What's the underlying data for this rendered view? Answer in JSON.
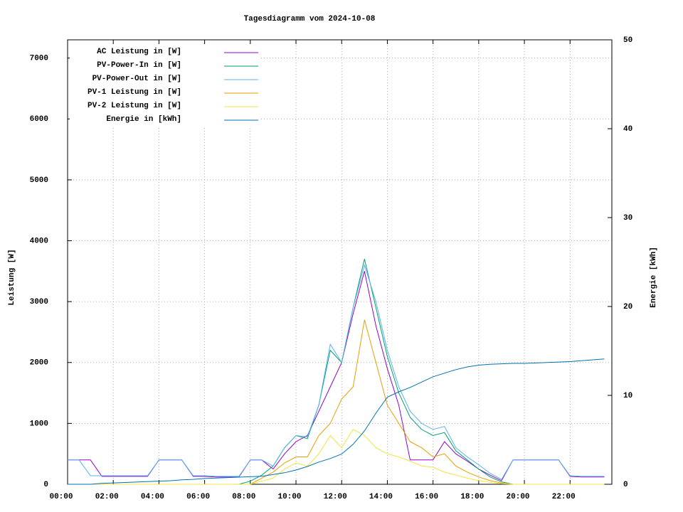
{
  "chart_data": {
    "type": "line",
    "title": "Tagesdiagramm vom 2024-10-08",
    "y_label": "Leistung [W]",
    "y2_label": "Energie [kWh]",
    "grid": true,
    "legend": "top-left",
    "x": [
      0,
      0.5,
      1,
      1.5,
      2,
      2.5,
      3,
      3.5,
      4,
      4.5,
      5,
      5.5,
      6,
      6.5,
      7,
      7.5,
      8,
      8.5,
      9,
      9.5,
      10,
      10.5,
      11,
      11.5,
      12,
      12.5,
      13,
      13.5,
      14,
      14.5,
      15,
      15.5,
      16,
      16.5,
      17,
      17.5,
      18,
      18.5,
      19,
      19.5,
      20,
      20.5,
      21,
      21.5,
      22,
      22.5,
      23,
      23.5
    ],
    "xlim": [
      0,
      23.83
    ],
    "xticks": [
      {
        "value": 0,
        "label": "00:00"
      },
      {
        "value": 2,
        "label": "02:00"
      },
      {
        "value": 4,
        "label": "04:00"
      },
      {
        "value": 6,
        "label": "06:00"
      },
      {
        "value": 8,
        "label": "08:00"
      },
      {
        "value": 10,
        "label": "10:00"
      },
      {
        "value": 12,
        "label": "12:00"
      },
      {
        "value": 14,
        "label": "14:00"
      },
      {
        "value": 16,
        "label": "16:00"
      },
      {
        "value": 18,
        "label": "18:00"
      },
      {
        "value": 20,
        "label": "20:00"
      },
      {
        "value": 22,
        "label": "22:00"
      }
    ],
    "ylim": [
      0,
      7300
    ],
    "yticks": [
      0,
      1000,
      2000,
      3000,
      4000,
      5000,
      6000,
      7000
    ],
    "y2lim": [
      0,
      50
    ],
    "y2ticks": [
      0,
      10,
      20,
      30,
      40,
      50
    ],
    "series": [
      {
        "name": "AC Leistung in [W]",
        "color": "#9400d3",
        "values": [
          400,
          400,
          400,
          130,
          130,
          130,
          130,
          130,
          400,
          400,
          400,
          130,
          130,
          120,
          120,
          120,
          400,
          400,
          250,
          500,
          700,
          800,
          1200,
          1600,
          2000,
          2800,
          3500,
          2600,
          1900,
          1300,
          400,
          400,
          400,
          700,
          500,
          380,
          250,
          150,
          60,
          400,
          400,
          400,
          400,
          400,
          130,
          120,
          120,
          120
        ]
      },
      {
        "name": "PV-Power-In in [W]",
        "color": "#009e73",
        "values": [
          0,
          0,
          0,
          0,
          0,
          0,
          0,
          0,
          0,
          0,
          0,
          0,
          0,
          0,
          0,
          0,
          50,
          150,
          300,
          600,
          800,
          750,
          1300,
          2200,
          2000,
          2900,
          3700,
          2900,
          2100,
          1500,
          1100,
          900,
          800,
          850,
          550,
          400,
          250,
          120,
          40,
          0,
          0,
          0,
          0,
          0,
          0,
          0,
          0,
          0
        ]
      },
      {
        "name": "PV-Power-Out in [W]",
        "color": "#56b4e9",
        "values": [
          400,
          400,
          140,
          140,
          140,
          140,
          140,
          140,
          400,
          400,
          400,
          140,
          140,
          130,
          130,
          130,
          400,
          400,
          300,
          600,
          800,
          780,
          1300,
          2300,
          2000,
          2900,
          3600,
          3000,
          2200,
          1600,
          1200,
          1000,
          900,
          950,
          600,
          450,
          320,
          180,
          80,
          400,
          400,
          400,
          400,
          400,
          140,
          130,
          130,
          130
        ]
      },
      {
        "name": "PV-1 Leistung in [W]",
        "color": "#e69f00",
        "values": [
          0,
          0,
          0,
          0,
          0,
          0,
          0,
          0,
          0,
          0,
          0,
          0,
          0,
          0,
          0,
          0,
          0,
          100,
          200,
          350,
          450,
          450,
          800,
          1000,
          1400,
          1600,
          2700,
          2000,
          1300,
          1000,
          700,
          600,
          450,
          500,
          300,
          200,
          120,
          60,
          20,
          0,
          0,
          0,
          0,
          0,
          0,
          0,
          0,
          0
        ]
      },
      {
        "name": "PV-2 Leistung in [W]",
        "color": "#f0e442",
        "values": [
          0,
          0,
          0,
          0,
          0,
          0,
          0,
          0,
          0,
          0,
          0,
          0,
          0,
          0,
          0,
          0,
          0,
          50,
          100,
          250,
          350,
          300,
          500,
          800,
          600,
          900,
          800,
          600,
          500,
          450,
          380,
          300,
          280,
          200,
          150,
          100,
          60,
          30,
          10,
          0,
          0,
          0,
          0,
          0,
          0,
          0,
          0,
          0
        ]
      },
      {
        "name": "Energie in [kWh]",
        "color": "#0072b2",
        "axis": "y2",
        "values": [
          0,
          0,
          0,
          0.1,
          0.15,
          0.2,
          0.25,
          0.3,
          0.35,
          0.4,
          0.5,
          0.55,
          0.65,
          0.7,
          0.75,
          0.8,
          0.85,
          0.9,
          1.1,
          1.3,
          1.6,
          2.0,
          2.5,
          2.9,
          3.4,
          4.5,
          6,
          8,
          9.8,
          10.4,
          10.9,
          11.5,
          12.1,
          12.5,
          12.9,
          13.2,
          13.4,
          13.5,
          13.55,
          13.6,
          13.6,
          13.65,
          13.7,
          13.75,
          13.8,
          13.9,
          14,
          14.1
        ]
      }
    ]
  }
}
